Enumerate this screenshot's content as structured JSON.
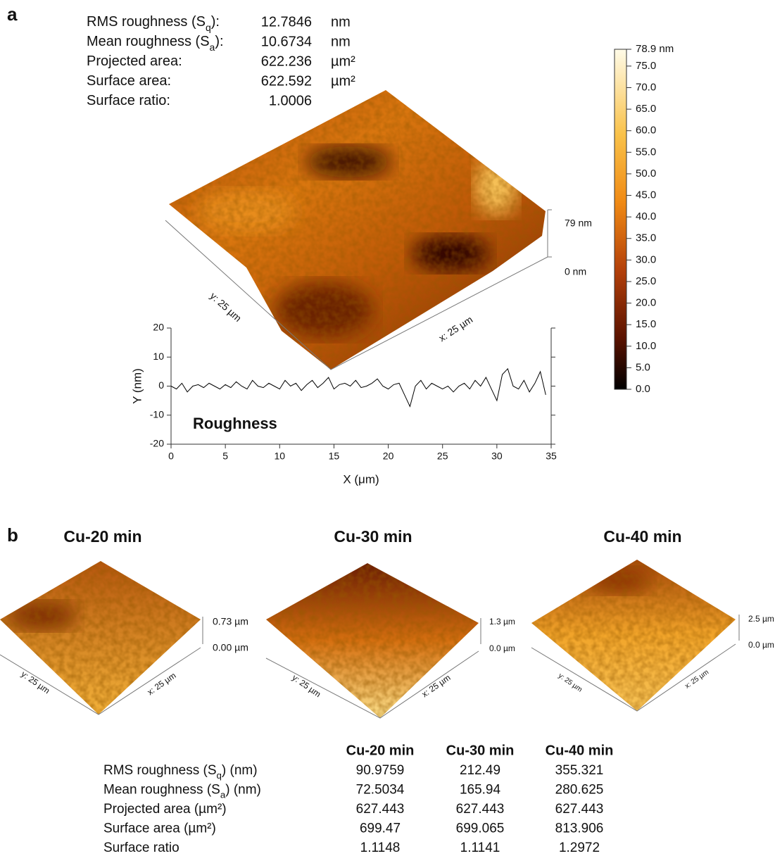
{
  "panel_a": {
    "label": "a",
    "stats": [
      {
        "label": [
          "RMS roughness (S",
          "q",
          "):"
        ],
        "value": 12.7846,
        "unit": "nm"
      },
      {
        "label": [
          "Mean roughness (S",
          "a",
          "):"
        ],
        "value": 10.6734,
        "unit": "nm"
      },
      {
        "label": [
          "Projected area:"
        ],
        "value": 622.236,
        "unit": "µm²"
      },
      {
        "label": [
          "Surface area:"
        ],
        "value": 622.592,
        "unit": "µm²"
      },
      {
        "label": [
          "Surface ratio:"
        ],
        "value": 1.0006
      }
    ],
    "surface": {
      "z_top": "79 nm",
      "z_bottom": "0 nm",
      "y_axis": "y: 25 µm",
      "x_axis": "x: 25 µm"
    },
    "colorbar": {
      "lim": [
        0,
        78.9
      ],
      "ticks": [
        {
          "value": 78.9,
          "label": "78.9 nm"
        },
        {
          "value": 75,
          "label": "75.0"
        },
        {
          "value": 70,
          "label": "70.0"
        },
        {
          "value": 65,
          "label": "65.0"
        },
        {
          "value": 60,
          "label": "60.0"
        },
        {
          "value": 55,
          "label": "55.0"
        },
        {
          "value": 50,
          "label": "50.0"
        },
        {
          "value": 45,
          "label": "45.0"
        },
        {
          "value": 40,
          "label": "40.0"
        },
        {
          "value": 35,
          "label": "35.0"
        },
        {
          "value": 30,
          "label": "30.0"
        },
        {
          "value": 25,
          "label": "25.0"
        },
        {
          "value": 20,
          "label": "20.0"
        },
        {
          "value": 15,
          "label": "15.0"
        },
        {
          "value": 10,
          "label": "10.0"
        },
        {
          "value": 5,
          "label": "5.0"
        },
        {
          "value": 0,
          "label": "0.0"
        }
      ]
    }
  },
  "chart_data": {
    "type": "line",
    "annotation": "Roughness",
    "xlabel": "X (μm)",
    "ylabel": "Y (nm)",
    "color": "#000000",
    "x": [
      0,
      0.5,
      1,
      1.5,
      2,
      2.5,
      3,
      3.5,
      4,
      4.5,
      5,
      5.5,
      6,
      6.5,
      7,
      7.5,
      8,
      8.5,
      9,
      9.5,
      10,
      10.5,
      11,
      11.5,
      12,
      12.5,
      13,
      13.5,
      14,
      14.5,
      15,
      15.5,
      16,
      16.5,
      17,
      17.5,
      18,
      18.5,
      19,
      19.5,
      20,
      20.5,
      21,
      21.5,
      22,
      22.5,
      23,
      23.5,
      24,
      24.5,
      25,
      25.5,
      26,
      26.5,
      27,
      27.5,
      28,
      28.5,
      29,
      29.5,
      30,
      30.5,
      31,
      31.5,
      32,
      32.5,
      33,
      33.5,
      34,
      34.5
    ],
    "values": [
      0,
      -1,
      1,
      -2,
      0,
      0.5,
      -0.5,
      1,
      0,
      -1,
      0.5,
      -0.5,
      1.5,
      0,
      -1,
      2,
      0,
      -0.5,
      1,
      0,
      -1,
      2,
      0,
      1,
      -1.5,
      0.5,
      2,
      -0.5,
      1,
      3,
      -1,
      0.5,
      1,
      0,
      2,
      -0.5,
      0,
      1,
      2.5,
      0,
      -1,
      0.5,
      1,
      -3,
      -7,
      0,
      2,
      -1,
      1,
      0,
      -1,
      0,
      -2,
      0,
      1,
      -1,
      2,
      0,
      3,
      -1,
      -5,
      4,
      6,
      0,
      -1,
      2,
      -2,
      1,
      5,
      -3
    ],
    "xlim": [
      0,
      35
    ],
    "ylim": [
      -20,
      20
    ],
    "xticks": [
      0,
      5,
      10,
      15,
      20,
      25,
      30,
      35
    ],
    "yticks": [
      -20,
      -10,
      0,
      10,
      20
    ]
  },
  "panel_b": {
    "label": "b",
    "samples": [
      {
        "title": "Cu-20 min",
        "z_top": "0.73 µm",
        "z_bottom": "0.00 µm",
        "y_axis": "y: 25 µm",
        "x_axis": "x: 25 µm"
      },
      {
        "title": "Cu-30 min",
        "z_top": "1.3 µm",
        "z_bottom": "0.0 µm",
        "y_axis": "y: 25 µm",
        "x_axis": "x: 25 µm"
      },
      {
        "title": "Cu-40 min",
        "z_top": "2.5 µm",
        "z_bottom": "0.0 µm",
        "y_axis": "y: 25 µm",
        "x_axis": "x: 25 µm"
      }
    ],
    "table": {
      "header": [
        "Cu-20 min",
        "Cu-30 min",
        "Cu-40 min"
      ],
      "rows": [
        {
          "label": [
            "RMS roughness (S",
            "q",
            ") (nm)"
          ],
          "values": [
            90.9759,
            212.49,
            355.321
          ]
        },
        {
          "label": [
            "Mean roughness (S",
            "a",
            ") (nm)"
          ],
          "values": [
            72.5034,
            165.94,
            280.625
          ]
        },
        {
          "label": [
            "Projected area (µm²)"
          ],
          "values": [
            627.443,
            627.443,
            627.443
          ]
        },
        {
          "label": [
            "Surface area (µm²)"
          ],
          "values": [
            699.47,
            699.065,
            813.906
          ]
        },
        {
          "label": [
            "Surface ratio"
          ],
          "values": [
            1.1148,
            1.1141,
            1.2972
          ]
        }
      ]
    }
  }
}
